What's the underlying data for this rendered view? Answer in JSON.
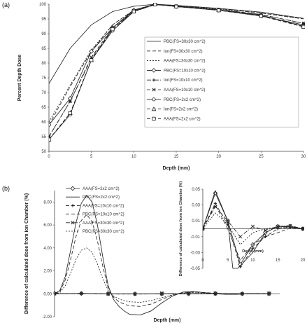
{
  "panel_labels": [
    "(a)",
    "(b)"
  ],
  "chart_data": [
    {
      "type": "line",
      "panel": "(a)",
      "xlabel": "Depth (mm)",
      "ylabel": "Percent Depth Dose",
      "xlim": [
        0,
        30
      ],
      "ylim": [
        50,
        100
      ],
      "x_ticks": [
        0,
        5,
        10,
        15,
        20,
        25,
        30
      ],
      "y_ticks": [
        50,
        55,
        60,
        65,
        70,
        75,
        80,
        85,
        90,
        95,
        100
      ],
      "grid": false,
      "legend_position": "inside right",
      "series": [
        {
          "name": "PBC(FS=30x30 cm^2)",
          "style": "solid",
          "marker": "none",
          "x": [
            0,
            2.5,
            5,
            7.5,
            10,
            12.5,
            15,
            20,
            25,
            30
          ],
          "y": [
            73,
            85,
            93,
            97.5,
            99.3,
            100,
            99.6,
            98.6,
            97.3,
            95.2
          ]
        },
        {
          "name": "Ion(FS=30x30 cm^2)",
          "style": "dash",
          "marker": "none",
          "x": [
            0,
            2.5,
            5,
            7.5,
            10,
            12.5,
            15,
            20,
            25,
            30
          ],
          "y": [
            59,
            72,
            84,
            93,
            98,
            100,
            99.5,
            98.5,
            97,
            95
          ]
        },
        {
          "name": "AAA(FS=30x30 cm^2)",
          "style": "shortdash",
          "marker": "none",
          "x": [
            0,
            2.5,
            5,
            7.5,
            10,
            12.5,
            15,
            20,
            25,
            30
          ],
          "y": [
            60,
            72.5,
            84.5,
            93,
            98,
            100,
            99.4,
            98.4,
            97,
            95
          ]
        },
        {
          "name": "PBC(FS=10x10 cm^2)",
          "style": "solid",
          "marker": "diamond",
          "x": [
            0,
            2.5,
            5,
            7.5,
            10,
            12.5,
            15,
            20,
            25,
            30
          ],
          "y": [
            59,
            68,
            84,
            92,
            98,
            100,
            99.2,
            98,
            96,
            93
          ]
        },
        {
          "name": "Ion(FS=10x10 cm^2)",
          "style": "dashdot",
          "marker": "plus",
          "x": [
            0,
            2.5,
            5,
            7.5,
            10,
            12.5,
            15,
            20,
            25,
            30
          ],
          "y": [
            55,
            67,
            81.5,
            91.5,
            97.5,
            99.8,
            99.4,
            98.2,
            96.5,
            93.5
          ]
        },
        {
          "name": "AAA(FS=10x10 cm^2)",
          "style": "dash",
          "marker": "cross",
          "x": [
            0,
            2.5,
            5,
            7.5,
            10,
            12.5,
            15,
            20,
            25,
            30
          ],
          "y": [
            55,
            67,
            82,
            92,
            97.8,
            99.9,
            99.4,
            98.2,
            96.5,
            93.5
          ]
        },
        {
          "name": "PBC(FS=2x2 cm^2)",
          "style": "solid",
          "marker": "circle",
          "x": [
            0,
            2.5,
            5,
            7.5,
            10,
            12.5,
            15,
            20,
            25,
            30
          ],
          "y": [
            54,
            62.5,
            81,
            91,
            97.5,
            100,
            99.3,
            98,
            96.3,
            92.5
          ]
        },
        {
          "name": "Ion(FS=2x2 cm^2)",
          "style": "dash",
          "marker": "triangle",
          "x": [
            0,
            2.5,
            5,
            7.5,
            10,
            12.5,
            15,
            20,
            25,
            30
          ],
          "y": [
            54,
            63,
            81,
            92,
            97.6,
            100,
            99.2,
            98,
            96.2,
            92.4
          ]
        },
        {
          "name": "AAA(FS=2x2 cm^2)",
          "style": "dash",
          "marker": "square",
          "x": [
            0,
            2.5,
            5,
            7.5,
            10,
            12.5,
            15,
            20,
            25,
            30
          ],
          "y": [
            54,
            63,
            81,
            91.5,
            97.5,
            99.9,
            99.2,
            97.9,
            96,
            92.3
          ]
        }
      ]
    },
    {
      "type": "line",
      "panel": "(b)",
      "xlabel": "Depth (mm)",
      "ylabel": "Difference of calculated dose from ion Chamber (%)",
      "xlim": [
        0,
        21
      ],
      "ylim": [
        -2,
        9
      ],
      "x_ticks": [
        0,
        5,
        10,
        15,
        20
      ],
      "y_ticks": [
        -2,
        0,
        2,
        4,
        6,
        8
      ],
      "y_tick_labels": [
        "-2.00",
        "0.00",
        "2.00",
        "4.00",
        "6.00",
        "8.00"
      ],
      "grid": false,
      "legend_position": "top-left",
      "series": [
        {
          "name": "AAA(FS=2x2 cm^2)",
          "style": "solid",
          "marker": "diamond",
          "x": [
            0,
            2.5,
            5,
            7.5,
            10,
            12.5,
            15,
            17.5,
            20
          ],
          "y": [
            0,
            0.02,
            -0.01,
            -0.01,
            -0.02,
            -0.01,
            0.01,
            0,
            -0.01
          ]
        },
        {
          "name": "PBC(FS=2x2 cm^2)",
          "style": "solid",
          "marker": "none",
          "x": [
            0,
            0.5,
            1,
            1.5,
            2,
            2.5,
            3,
            3.5,
            4,
            4.5,
            5,
            5.5,
            6,
            6.5,
            7,
            8,
            9,
            10,
            11,
            12,
            13,
            14,
            15,
            16,
            17,
            18,
            19,
            20
          ],
          "y": [
            0,
            0.3,
            1.5,
            3.8,
            6.2,
            7.9,
            8.6,
            8.0,
            6.0,
            3.2,
            0.7,
            -0.5,
            -1.1,
            -1.5,
            -1.8,
            -1.85,
            -1.5,
            -0.8,
            -0.2,
            0.15,
            0.2,
            0.1,
            0.0,
            -0.05,
            -0.05,
            0,
            0,
            0
          ]
        },
        {
          "name": "AAA(FS=10x10 cm^2)",
          "style": "dash",
          "marker": "plus",
          "x": [
            0,
            2.5,
            5,
            7.5,
            10,
            12.5,
            15,
            17.5,
            20
          ],
          "y": [
            0,
            0.04,
            -0.02,
            -0.03,
            -0.01,
            0.01,
            0,
            0,
            0
          ]
        },
        {
          "name": "PBC(FS=10x10 cm^2)",
          "style": "dash",
          "marker": "none",
          "x": [
            0,
            0.5,
            1,
            1.5,
            2,
            2.5,
            3,
            3.5,
            4,
            4.5,
            5,
            5.5,
            6,
            6.5,
            7,
            8,
            9,
            10,
            11,
            12,
            13,
            14,
            15,
            16,
            17,
            18,
            19,
            20
          ],
          "y": [
            0,
            0.2,
            1.2,
            3.0,
            5.0,
            6.4,
            6.9,
            6.3,
            4.6,
            2.4,
            0.5,
            -0.3,
            -0.7,
            -0.9,
            -1.05,
            -1.1,
            -0.9,
            -0.5,
            -0.1,
            0.1,
            0.15,
            0.1,
            0.05,
            0,
            0,
            0,
            0,
            0
          ]
        },
        {
          "name": "AAA(FS=30x30 cm^2)",
          "style": "dashdot",
          "marker": "cross",
          "x": [
            0,
            2.5,
            5,
            7.5,
            10,
            12.5,
            15,
            17.5,
            20
          ],
          "y": [
            0,
            0.03,
            -0.01,
            -0.02,
            0,
            0.01,
            0,
            0.01,
            0
          ]
        },
        {
          "name": "PBC(FS=30x30 cm^2)",
          "style": "shortdash",
          "marker": "none",
          "x": [
            0,
            0.5,
            1,
            1.5,
            2,
            2.5,
            3,
            3.5,
            4,
            4.5,
            5,
            5.5,
            6,
            6.5,
            7,
            8,
            9,
            10,
            11,
            12,
            13,
            14,
            15,
            16,
            17,
            18,
            19,
            20
          ],
          "y": [
            0,
            0.1,
            0.7,
            1.8,
            3.0,
            3.8,
            4.0,
            3.6,
            2.6,
            1.3,
            0.3,
            -0.2,
            -0.45,
            -0.6,
            -0.7,
            -0.75,
            -0.6,
            -0.35,
            -0.1,
            0.05,
            0.1,
            0.05,
            0,
            0,
            0,
            0,
            0,
            0
          ]
        }
      ]
    },
    {
      "type": "line",
      "panel": "(b) inset",
      "xlabel": "Depth (mm)",
      "ylabel": "Difference of calculated dose from ion Chamber (%)",
      "xlim": [
        0,
        20
      ],
      "ylim": [
        -0.05,
        0.05
      ],
      "x_ticks": [
        0,
        5,
        10,
        15,
        20
      ],
      "y_ticks": [
        -0.05,
        -0.03,
        -0.01,
        0.01,
        0.03,
        0.05
      ],
      "y_tick_labels": [
        "-0.05",
        "-0.03",
        "-0.01",
        "0.01",
        "0.03",
        "0.05"
      ],
      "grid": false,
      "legend_position": "none",
      "series": [
        {
          "name": "AAA(FS=2x2 cm^2)",
          "style": "solid",
          "marker": "diamond",
          "x": [
            0,
            2.5,
            5,
            7.5,
            10,
            12.5,
            15,
            17.5,
            20
          ],
          "y": [
            0,
            0.045,
            0.01,
            -0.045,
            -0.02,
            -0.005,
            0.003,
            0.003,
            0
          ]
        },
        {
          "name": "PBC(FS=2x2 cm^2)",
          "style": "solid",
          "marker": "none",
          "x": [
            0,
            2.5,
            5,
            6,
            7,
            10,
            12.5,
            15,
            17.5,
            20
          ],
          "y": [
            0,
            0.048,
            0.01,
            -0.05,
            -0.05,
            -0.03,
            -0.005,
            0.003,
            0.002,
            0
          ]
        },
        {
          "name": "AAA(FS=10x10 cm^2)",
          "style": "dash",
          "marker": "plus",
          "x": [
            0,
            2.5,
            5,
            7.5,
            10,
            12.5,
            15,
            17.5,
            20
          ],
          "y": [
            0,
            0.032,
            0.005,
            -0.048,
            -0.025,
            -0.01,
            0,
            0.002,
            0
          ]
        },
        {
          "name": "PBC(FS=10x10 cm^2)",
          "style": "dash",
          "marker": "none",
          "x": [
            0,
            2.5,
            5,
            7.5,
            10,
            12.5,
            15,
            17.5,
            20
          ],
          "y": [
            0,
            0.03,
            0,
            -0.04,
            -0.02,
            -0.01,
            -0.005,
            0.001,
            0
          ]
        },
        {
          "name": "AAA(FS=30x30 cm^2)",
          "style": "dashdot",
          "marker": "cross",
          "x": [
            0,
            2.5,
            5,
            7.5,
            10,
            12.5,
            15,
            17.5,
            20
          ],
          "y": [
            0,
            0.028,
            0.01,
            -0.01,
            0.003,
            -0.002,
            0.003,
            0.004,
            0
          ]
        },
        {
          "name": "PBC(FS=30x30 cm^2)",
          "style": "shortdash",
          "marker": "none",
          "x": [
            0,
            2.5,
            5,
            7.5,
            10,
            12.5,
            15,
            17.5,
            20
          ],
          "y": [
            0,
            0.02,
            0.005,
            -0.02,
            -0.005,
            0,
            0.002,
            0.002,
            0
          ]
        }
      ]
    }
  ]
}
